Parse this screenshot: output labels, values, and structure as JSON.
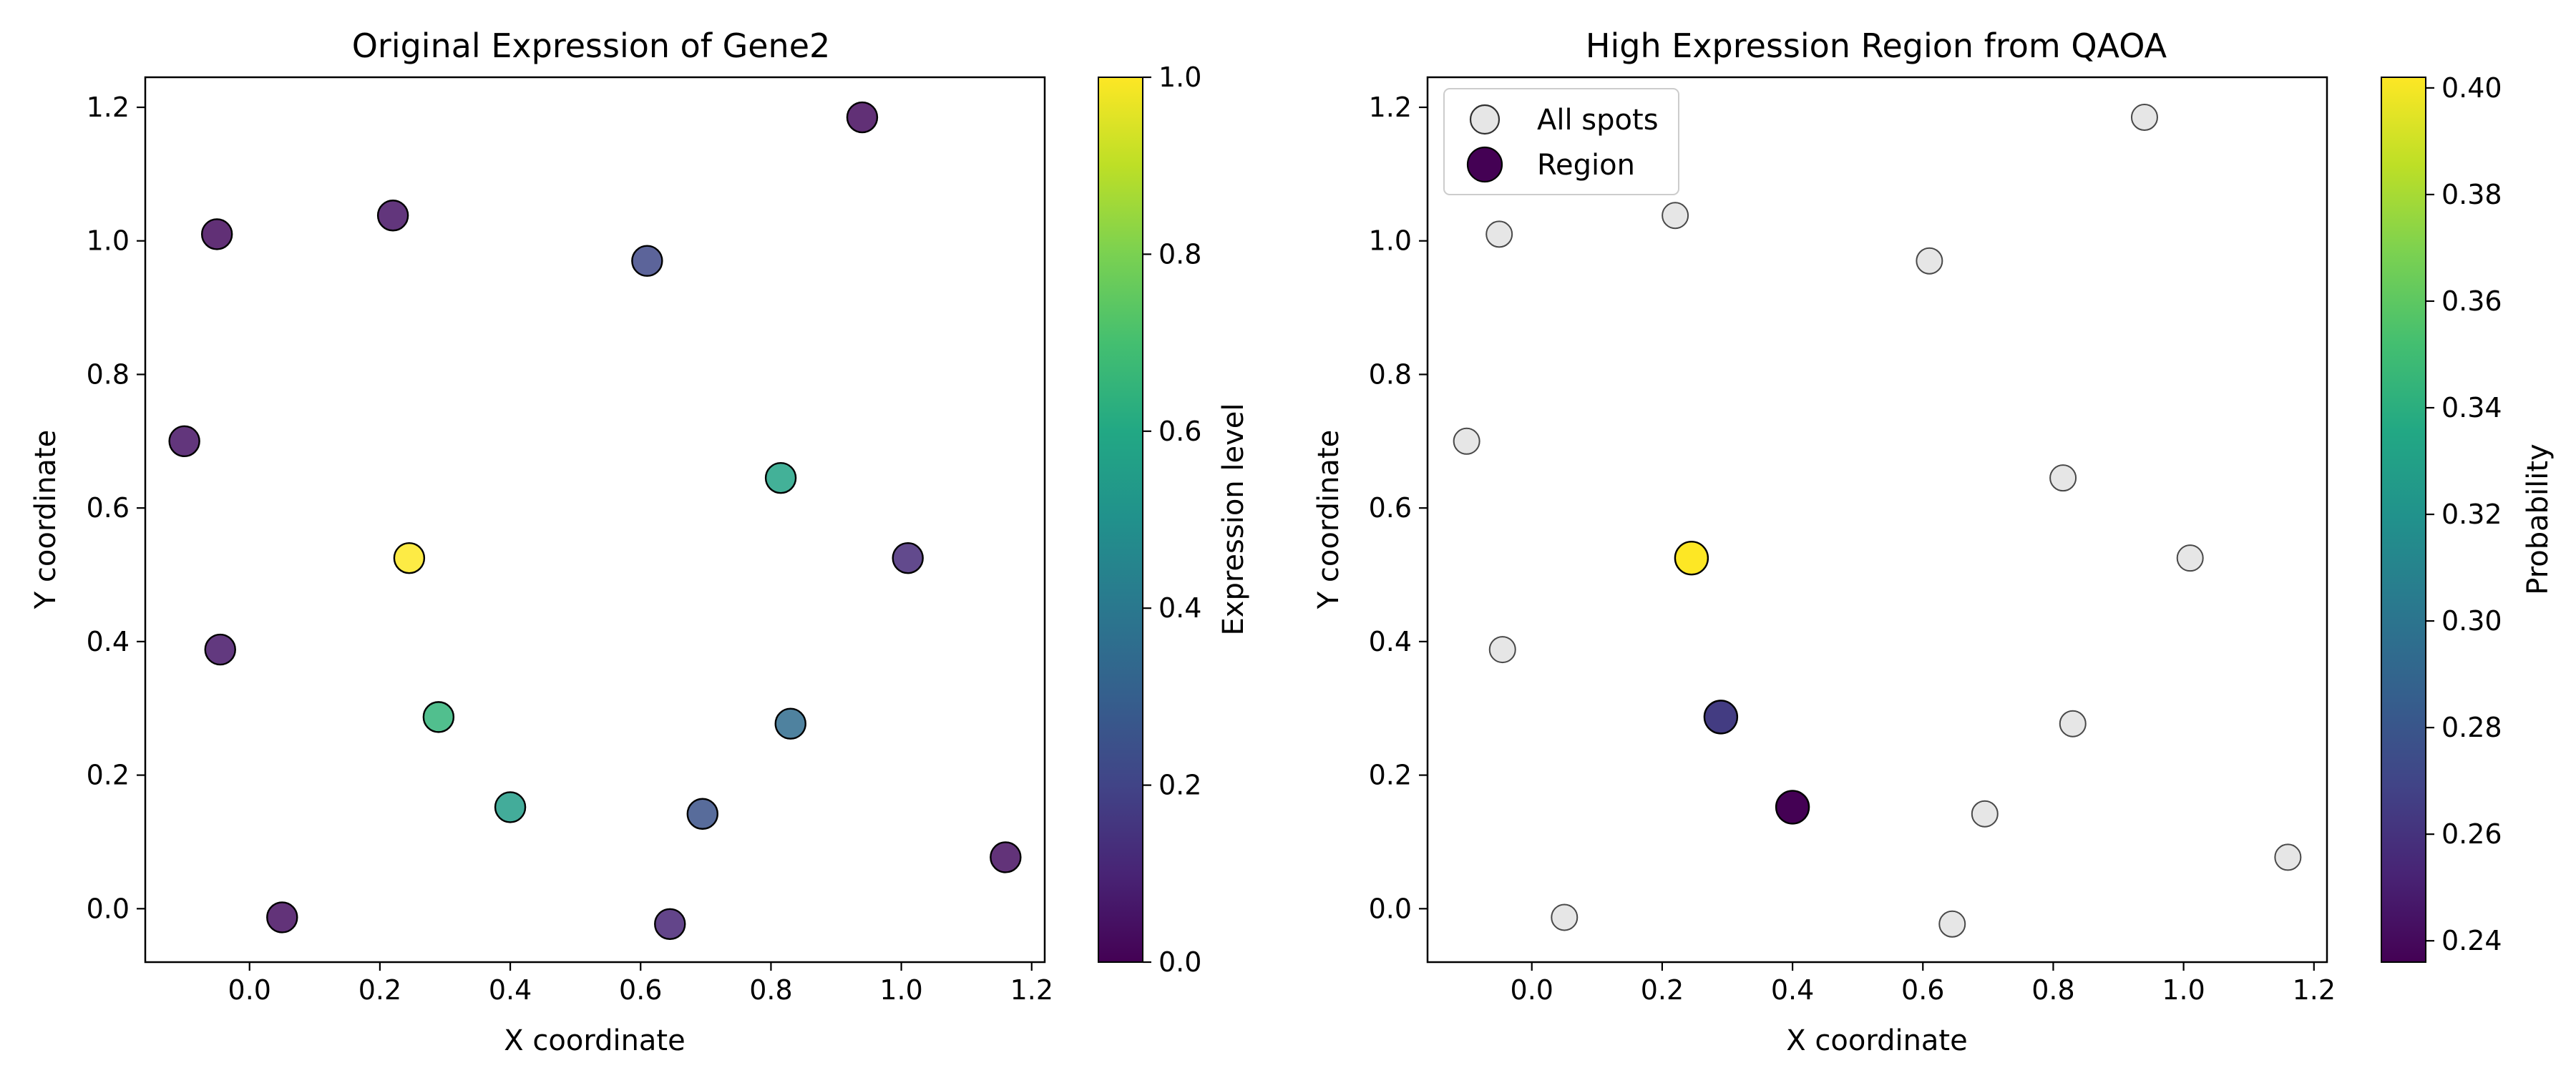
{
  "chart_data": [
    {
      "type": "scatter",
      "title": "Original Expression of Gene2",
      "xlabel": "X coordinate",
      "ylabel": "Y coordinate",
      "xlim": [
        -0.16,
        1.22
      ],
      "ylim": [
        -0.08,
        1.245
      ],
      "xticks": [
        "0.0",
        "0.2",
        "0.4",
        "0.6",
        "0.8",
        "1.0",
        "1.2"
      ],
      "yticks": [
        "0.0",
        "0.2",
        "0.4",
        "0.6",
        "0.8",
        "1.0",
        "1.2"
      ],
      "grid": false,
      "colormap": "viridis",
      "colorbar": {
        "label": "Expression level",
        "range": [
          0.0,
          1.0
        ],
        "ticks": [
          "0.0",
          "0.2",
          "0.4",
          "0.6",
          "0.8",
          "1.0"
        ]
      },
      "points": [
        {
          "x": 0.94,
          "y": 1.185,
          "value": 0.03
        },
        {
          "x": -0.05,
          "y": 1.01,
          "value": 0.03
        },
        {
          "x": 0.22,
          "y": 1.038,
          "value": 0.05
        },
        {
          "x": 0.61,
          "y": 0.97,
          "value": 0.22
        },
        {
          "x": -0.1,
          "y": 0.7,
          "value": 0.05
        },
        {
          "x": 0.815,
          "y": 0.645,
          "value": 0.58
        },
        {
          "x": 0.245,
          "y": 0.525,
          "value": 1.0
        },
        {
          "x": 1.01,
          "y": 0.525,
          "value": 0.12
        },
        {
          "x": -0.045,
          "y": 0.388,
          "value": 0.06
        },
        {
          "x": 0.29,
          "y": 0.287,
          "value": 0.65
        },
        {
          "x": 0.83,
          "y": 0.277,
          "value": 0.35
        },
        {
          "x": 0.4,
          "y": 0.152,
          "value": 0.55
        },
        {
          "x": 0.695,
          "y": 0.142,
          "value": 0.25
        },
        {
          "x": 1.16,
          "y": 0.077,
          "value": 0.04
        },
        {
          "x": 0.05,
          "y": -0.013,
          "value": 0.04
        },
        {
          "x": 0.645,
          "y": -0.023,
          "value": 0.1
        }
      ]
    },
    {
      "type": "scatter",
      "title": "High Expression Region from QAOA",
      "xlabel": "X coordinate",
      "ylabel": "Y coordinate",
      "xlim": [
        -0.16,
        1.22
      ],
      "ylim": [
        -0.08,
        1.245
      ],
      "xticks": [
        "0.0",
        "0.2",
        "0.4",
        "0.6",
        "0.8",
        "1.0",
        "1.2"
      ],
      "yticks": [
        "0.0",
        "0.2",
        "0.4",
        "0.6",
        "0.8",
        "1.0",
        "1.2"
      ],
      "grid": false,
      "colormap": "viridis",
      "colorbar": {
        "label": "Probability",
        "range": [
          0.236,
          0.402
        ],
        "ticks": [
          "0.24",
          "0.26",
          "0.28",
          "0.30",
          "0.32",
          "0.34",
          "0.36",
          "0.38",
          "0.40"
        ]
      },
      "legend": {
        "placement": "top-left",
        "entries": [
          {
            "label": "All spots",
            "color": "#e6e6e6"
          },
          {
            "label": "Region",
            "color": "#440154"
          }
        ]
      },
      "series": [
        {
          "name": "All spots",
          "color": "#e6e6e6",
          "points": [
            {
              "x": 0.94,
              "y": 1.185
            },
            {
              "x": -0.05,
              "y": 1.01
            },
            {
              "x": 0.22,
              "y": 1.038
            },
            {
              "x": 0.61,
              "y": 0.97
            },
            {
              "x": -0.1,
              "y": 0.7
            },
            {
              "x": 0.815,
              "y": 0.645
            },
            {
              "x": 0.245,
              "y": 0.525
            },
            {
              "x": 1.01,
              "y": 0.525
            },
            {
              "x": -0.045,
              "y": 0.388
            },
            {
              "x": 0.29,
              "y": 0.287
            },
            {
              "x": 0.83,
              "y": 0.277
            },
            {
              "x": 0.4,
              "y": 0.152
            },
            {
              "x": 0.695,
              "y": 0.142
            },
            {
              "x": 1.16,
              "y": 0.077
            },
            {
              "x": 0.05,
              "y": -0.013
            },
            {
              "x": 0.645,
              "y": -0.023
            }
          ]
        },
        {
          "name": "Region",
          "points": [
            {
              "x": 0.245,
              "y": 0.525,
              "value": 0.402
            },
            {
              "x": 0.29,
              "y": 0.287,
              "value": 0.265
            },
            {
              "x": 0.4,
              "y": 0.152,
              "value": 0.236
            }
          ]
        }
      ]
    }
  ]
}
